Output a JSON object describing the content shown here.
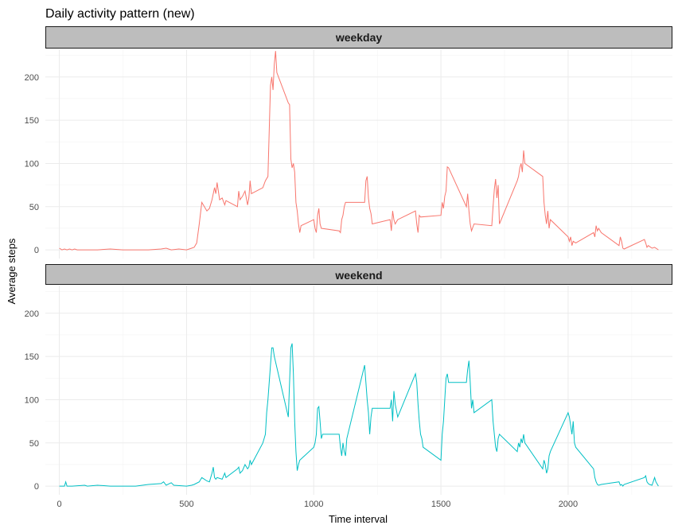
{
  "chart_data": {
    "type": "line",
    "title": "Daily activity pattern (new)",
    "xlabel": "Time interval",
    "ylabel": "Average steps",
    "xlim": [
      -55,
      2410
    ],
    "ylim": [
      -10,
      232
    ],
    "xticks": [
      0,
      500,
      1000,
      1500,
      2000
    ],
    "yticks": [
      0,
      50,
      100,
      150,
      200
    ],
    "grid": true,
    "legend": "none",
    "facets": [
      {
        "label": "weekday",
        "color": "#F8766D",
        "points": [
          [
            0,
            2
          ],
          [
            10,
            0
          ],
          [
            20,
            1
          ],
          [
            30,
            0
          ],
          [
            40,
            1
          ],
          [
            50,
            0
          ],
          [
            60,
            1
          ],
          [
            70,
            0
          ],
          [
            100,
            0
          ],
          [
            150,
            0
          ],
          [
            200,
            1
          ],
          [
            250,
            0
          ],
          [
            300,
            0
          ],
          [
            350,
            0
          ],
          [
            400,
            1
          ],
          [
            420,
            2
          ],
          [
            440,
            0
          ],
          [
            470,
            1
          ],
          [
            500,
            0
          ],
          [
            520,
            2
          ],
          [
            530,
            3
          ],
          [
            540,
            8
          ],
          [
            550,
            30
          ],
          [
            560,
            55
          ],
          [
            570,
            50
          ],
          [
            580,
            45
          ],
          [
            590,
            48
          ],
          [
            600,
            58
          ],
          [
            610,
            72
          ],
          [
            615,
            65
          ],
          [
            620,
            78
          ],
          [
            630,
            58
          ],
          [
            640,
            60
          ],
          [
            650,
            52
          ],
          [
            655,
            57
          ],
          [
            700,
            50
          ],
          [
            705,
            68
          ],
          [
            710,
            58
          ],
          [
            720,
            62
          ],
          [
            730,
            68
          ],
          [
            740,
            52
          ],
          [
            745,
            60
          ],
          [
            750,
            80
          ],
          [
            755,
            65
          ],
          [
            800,
            72
          ],
          [
            810,
            80
          ],
          [
            820,
            85
          ],
          [
            830,
            190
          ],
          [
            835,
            200
          ],
          [
            840,
            185
          ],
          [
            845,
            215
          ],
          [
            850,
            230
          ],
          [
            855,
            205
          ],
          [
            900,
            170
          ],
          [
            905,
            168
          ],
          [
            910,
            105
          ],
          [
            915,
            95
          ],
          [
            920,
            100
          ],
          [
            925,
            90
          ],
          [
            930,
            55
          ],
          [
            935,
            45
          ],
          [
            940,
            30
          ],
          [
            945,
            20
          ],
          [
            950,
            28
          ],
          [
            1000,
            35
          ],
          [
            1005,
            25
          ],
          [
            1010,
            20
          ],
          [
            1015,
            40
          ],
          [
            1020,
            48
          ],
          [
            1025,
            30
          ],
          [
            1030,
            25
          ],
          [
            1100,
            22
          ],
          [
            1105,
            20
          ],
          [
            1110,
            35
          ],
          [
            1115,
            40
          ],
          [
            1120,
            50
          ],
          [
            1125,
            55
          ],
          [
            1130,
            55
          ],
          [
            1200,
            55
          ],
          [
            1205,
            80
          ],
          [
            1210,
            85
          ],
          [
            1215,
            60
          ],
          [
            1220,
            48
          ],
          [
            1225,
            42
          ],
          [
            1230,
            30
          ],
          [
            1300,
            35
          ],
          [
            1305,
            22
          ],
          [
            1310,
            45
          ],
          [
            1315,
            35
          ],
          [
            1320,
            30
          ],
          [
            1330,
            35
          ],
          [
            1400,
            45
          ],
          [
            1405,
            30
          ],
          [
            1410,
            20
          ],
          [
            1415,
            40
          ],
          [
            1420,
            38
          ],
          [
            1500,
            40
          ],
          [
            1505,
            55
          ],
          [
            1510,
            48
          ],
          [
            1515,
            62
          ],
          [
            1520,
            68
          ],
          [
            1525,
            96
          ],
          [
            1530,
            95
          ],
          [
            1600,
            50
          ],
          [
            1605,
            65
          ],
          [
            1610,
            45
          ],
          [
            1615,
            30
          ],
          [
            1620,
            22
          ],
          [
            1630,
            30
          ],
          [
            1700,
            28
          ],
          [
            1705,
            50
          ],
          [
            1710,
            70
          ],
          [
            1715,
            82
          ],
          [
            1720,
            60
          ],
          [
            1725,
            75
          ],
          [
            1730,
            30
          ],
          [
            1800,
            80
          ],
          [
            1805,
            85
          ],
          [
            1810,
            95
          ],
          [
            1815,
            100
          ],
          [
            1820,
            90
          ],
          [
            1825,
            115
          ],
          [
            1830,
            100
          ],
          [
            1900,
            85
          ],
          [
            1905,
            55
          ],
          [
            1910,
            40
          ],
          [
            1915,
            30
          ],
          [
            1920,
            45
          ],
          [
            1925,
            25
          ],
          [
            1930,
            35
          ],
          [
            2000,
            15
          ],
          [
            2005,
            10
          ],
          [
            2010,
            15
          ],
          [
            2015,
            5
          ],
          [
            2020,
            10
          ],
          [
            2030,
            8
          ],
          [
            2100,
            20
          ],
          [
            2105,
            15
          ],
          [
            2110,
            28
          ],
          [
            2115,
            22
          ],
          [
            2120,
            25
          ],
          [
            2130,
            20
          ],
          [
            2200,
            5
          ],
          [
            2205,
            15
          ],
          [
            2210,
            10
          ],
          [
            2215,
            2
          ],
          [
            2220,
            1
          ],
          [
            2300,
            12
          ],
          [
            2305,
            8
          ],
          [
            2310,
            3
          ],
          [
            2315,
            5
          ],
          [
            2320,
            4
          ],
          [
            2330,
            2
          ],
          [
            2340,
            3
          ],
          [
            2350,
            1
          ],
          [
            2355,
            0
          ]
        ]
      },
      {
        "label": "weekend",
        "color": "#00BFC4",
        "points": [
          [
            0,
            0
          ],
          [
            20,
            0
          ],
          [
            25,
            5
          ],
          [
            30,
            0
          ],
          [
            50,
            0
          ],
          [
            100,
            1
          ],
          [
            110,
            0
          ],
          [
            150,
            1
          ],
          [
            200,
            0
          ],
          [
            250,
            0
          ],
          [
            300,
            0
          ],
          [
            350,
            2
          ],
          [
            400,
            3
          ],
          [
            410,
            5
          ],
          [
            420,
            1
          ],
          [
            440,
            4
          ],
          [
            450,
            1
          ],
          [
            500,
            0
          ],
          [
            520,
            1
          ],
          [
            530,
            2
          ],
          [
            550,
            5
          ],
          [
            560,
            10
          ],
          [
            570,
            8
          ],
          [
            580,
            6
          ],
          [
            590,
            5
          ],
          [
            600,
            15
          ],
          [
            605,
            22
          ],
          [
            610,
            10
          ],
          [
            615,
            8
          ],
          [
            620,
            10
          ],
          [
            630,
            9
          ],
          [
            640,
            8
          ],
          [
            650,
            15
          ],
          [
            655,
            10
          ],
          [
            700,
            20
          ],
          [
            705,
            22
          ],
          [
            710,
            15
          ],
          [
            720,
            18
          ],
          [
            730,
            25
          ],
          [
            740,
            20
          ],
          [
            745,
            22
          ],
          [
            750,
            30
          ],
          [
            755,
            25
          ],
          [
            800,
            50
          ],
          [
            805,
            55
          ],
          [
            810,
            60
          ],
          [
            815,
            85
          ],
          [
            820,
            100
          ],
          [
            825,
            120
          ],
          [
            830,
            140
          ],
          [
            835,
            160
          ],
          [
            840,
            160
          ],
          [
            845,
            150
          ],
          [
            900,
            80
          ],
          [
            905,
            120
          ],
          [
            910,
            160
          ],
          [
            915,
            165
          ],
          [
            920,
            130
          ],
          [
            925,
            75
          ],
          [
            930,
            40
          ],
          [
            935,
            18
          ],
          [
            940,
            25
          ],
          [
            945,
            30
          ],
          [
            1000,
            45
          ],
          [
            1005,
            50
          ],
          [
            1010,
            60
          ],
          [
            1015,
            90
          ],
          [
            1020,
            92
          ],
          [
            1025,
            75
          ],
          [
            1030,
            55
          ],
          [
            1035,
            60
          ],
          [
            1100,
            60
          ],
          [
            1105,
            45
          ],
          [
            1110,
            35
          ],
          [
            1115,
            50
          ],
          [
            1120,
            40
          ],
          [
            1125,
            35
          ],
          [
            1130,
            55
          ],
          [
            1200,
            140
          ],
          [
            1205,
            120
          ],
          [
            1210,
            100
          ],
          [
            1215,
            85
          ],
          [
            1220,
            60
          ],
          [
            1225,
            80
          ],
          [
            1230,
            90
          ],
          [
            1300,
            90
          ],
          [
            1305,
            100
          ],
          [
            1310,
            75
          ],
          [
            1315,
            110
          ],
          [
            1320,
            95
          ],
          [
            1330,
            80
          ],
          [
            1400,
            130
          ],
          [
            1405,
            120
          ],
          [
            1410,
            95
          ],
          [
            1415,
            75
          ],
          [
            1420,
            60
          ],
          [
            1425,
            55
          ],
          [
            1430,
            45
          ],
          [
            1500,
            30
          ],
          [
            1505,
            60
          ],
          [
            1510,
            75
          ],
          [
            1515,
            100
          ],
          [
            1520,
            125
          ],
          [
            1525,
            130
          ],
          [
            1530,
            120
          ],
          [
            1600,
            120
          ],
          [
            1605,
            135
          ],
          [
            1610,
            145
          ],
          [
            1615,
            120
          ],
          [
            1620,
            90
          ],
          [
            1625,
            100
          ],
          [
            1630,
            85
          ],
          [
            1700,
            100
          ],
          [
            1705,
            75
          ],
          [
            1710,
            60
          ],
          [
            1715,
            45
          ],
          [
            1720,
            40
          ],
          [
            1725,
            55
          ],
          [
            1730,
            60
          ],
          [
            1800,
            40
          ],
          [
            1805,
            50
          ],
          [
            1810,
            45
          ],
          [
            1815,
            55
          ],
          [
            1820,
            50
          ],
          [
            1825,
            60
          ],
          [
            1830,
            50
          ],
          [
            1900,
            20
          ],
          [
            1905,
            30
          ],
          [
            1910,
            25
          ],
          [
            1915,
            15
          ],
          [
            1920,
            20
          ],
          [
            1925,
            35
          ],
          [
            1930,
            40
          ],
          [
            2000,
            85
          ],
          [
            2005,
            80
          ],
          [
            2010,
            70
          ],
          [
            2015,
            60
          ],
          [
            2020,
            75
          ],
          [
            2025,
            50
          ],
          [
            2030,
            45
          ],
          [
            2100,
            20
          ],
          [
            2105,
            10
          ],
          [
            2110,
            5
          ],
          [
            2115,
            2
          ],
          [
            2120,
            1
          ],
          [
            2130,
            2
          ],
          [
            2200,
            5
          ],
          [
            2205,
            1
          ],
          [
            2210,
            2
          ],
          [
            2215,
            0
          ],
          [
            2220,
            2
          ],
          [
            2300,
            10
          ],
          [
            2305,
            12
          ],
          [
            2310,
            5
          ],
          [
            2315,
            3
          ],
          [
            2320,
            2
          ],
          [
            2330,
            1
          ],
          [
            2340,
            10
          ],
          [
            2345,
            5
          ],
          [
            2355,
            0
          ]
        ]
      }
    ]
  }
}
